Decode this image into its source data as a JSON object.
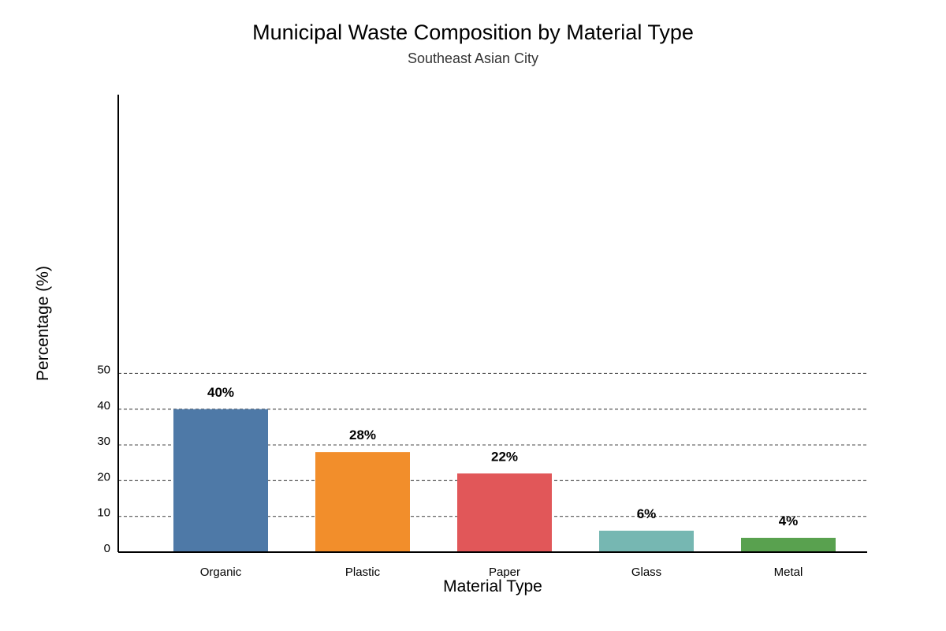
{
  "chart_data": {
    "type": "bar",
    "title": "Municipal Waste Composition by Material Type",
    "subtitle": "Southeast Asian City",
    "xlabel": "Material Type",
    "ylabel": "Percentage (%)",
    "categories": [
      "Organic",
      "Plastic",
      "Paper",
      "Glass",
      "Metal"
    ],
    "values": [
      40,
      28,
      22,
      6,
      4
    ],
    "data_labels": [
      "40%",
      "28%",
      "22%",
      "6%",
      "4%"
    ],
    "colors": [
      "#4e79a7",
      "#f28e2b",
      "#e15759",
      "#76b7b2",
      "#59a14f"
    ],
    "yticks": [
      0,
      10,
      20,
      30,
      40,
      50
    ],
    "ylim": [
      0,
      128
    ],
    "grid": true,
    "legend": "none"
  }
}
